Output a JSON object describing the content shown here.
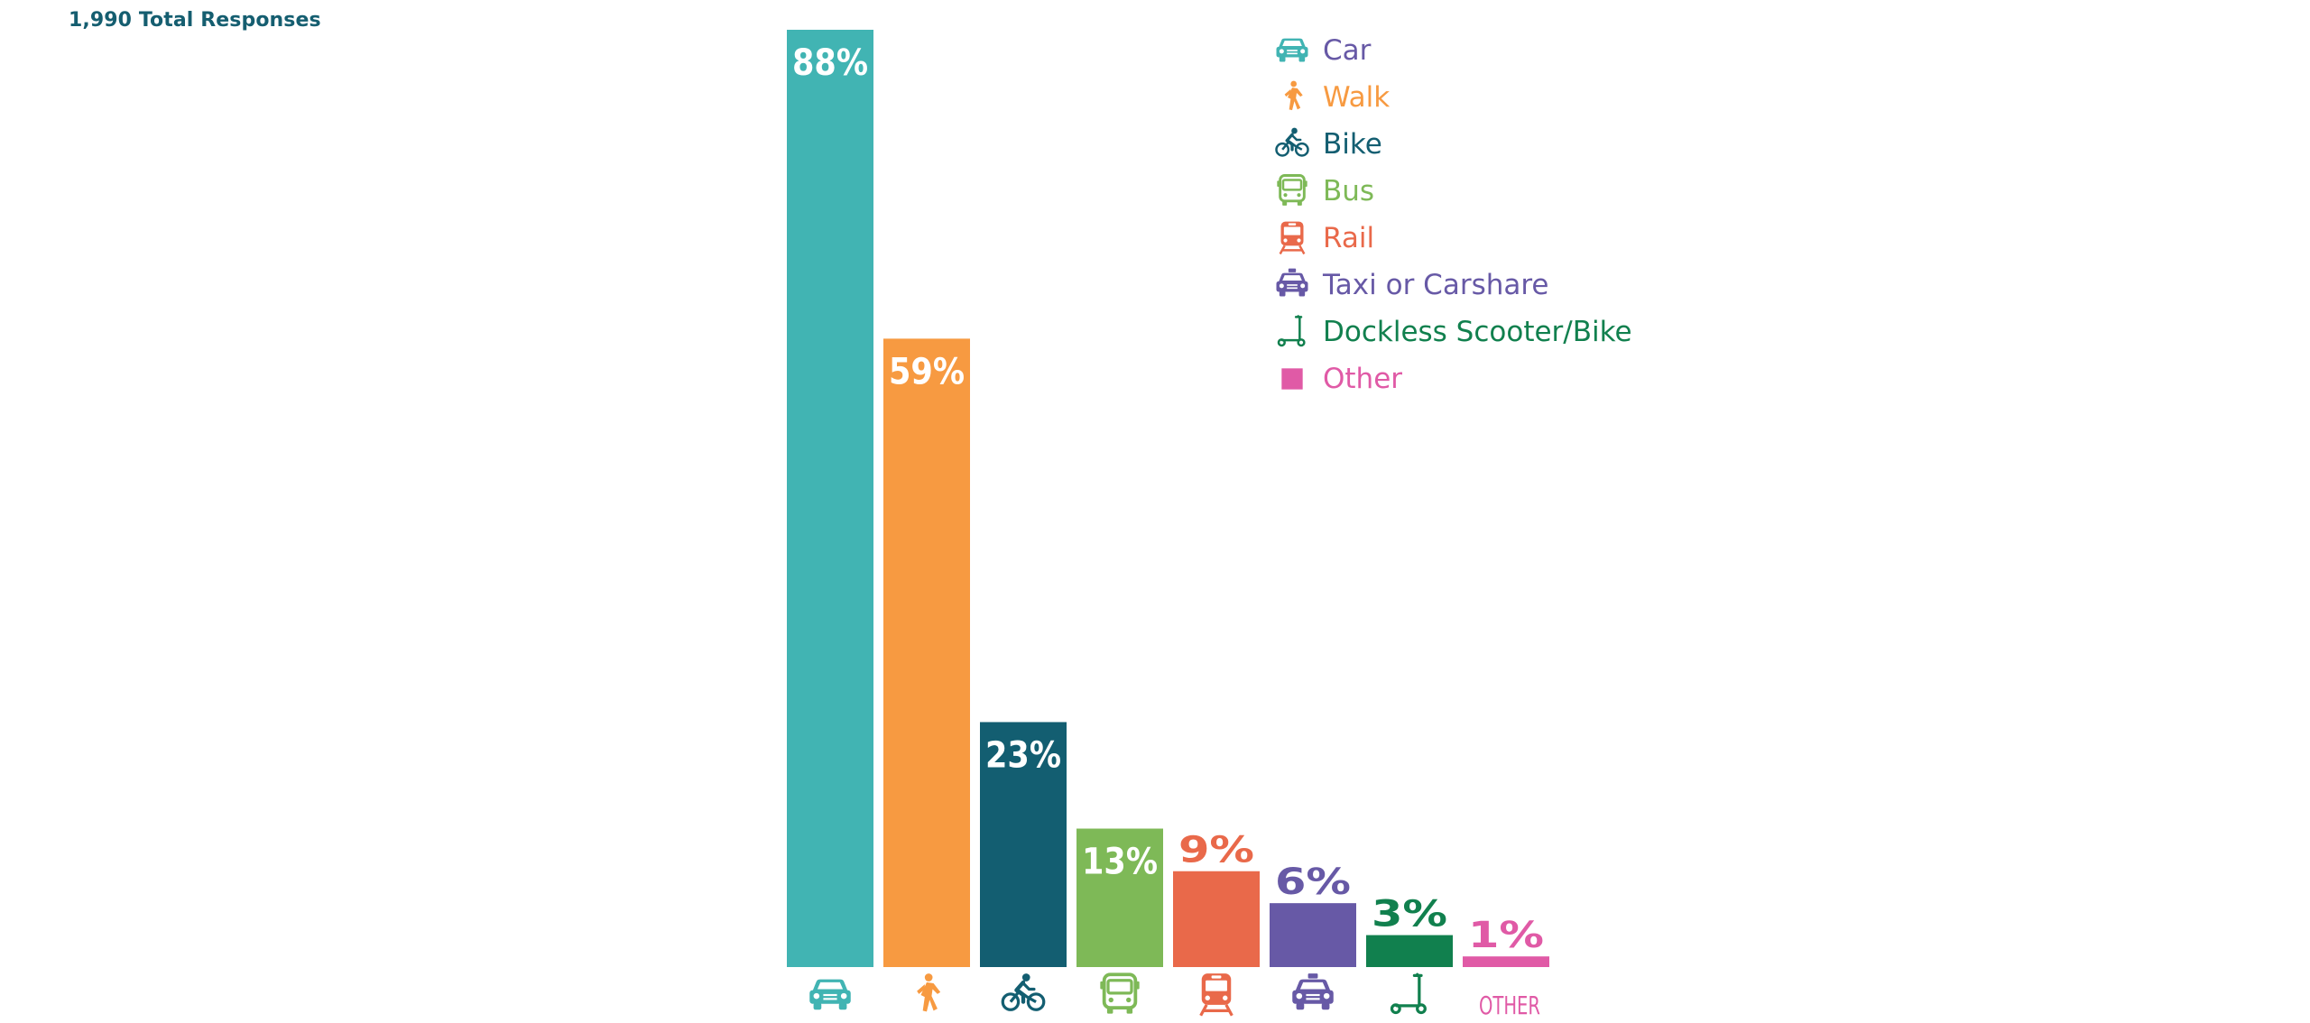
{
  "header": {
    "subtitle": "1,990 Total Responses"
  },
  "colors": {
    "car": "#41b4b3",
    "walk": "#f79a41",
    "bike": "#135e71",
    "bus": "#7eb957",
    "rail": "#e9694a",
    "taxi": "#6759a6",
    "scooter": "#11804e",
    "other": "#e05aa6",
    "legend_car_label": "#6759a6"
  },
  "chart_data": {
    "type": "bar",
    "categories": [
      "Car",
      "Walk",
      "Bike",
      "Bus",
      "Rail",
      "Taxi or Carshare",
      "Dockless Scooter/Bike",
      "Other"
    ],
    "values": [
      88,
      59,
      23,
      13,
      9,
      6,
      3,
      1
    ],
    "value_labels": [
      "88%",
      "59%",
      "23%",
      "13%",
      "9%",
      "6%",
      "3%",
      "1%"
    ],
    "unit": "%",
    "ylim": [
      0,
      88
    ],
    "axis_icons": [
      "car-icon",
      "walk-icon",
      "bike-icon",
      "bus-icon",
      "rail-icon",
      "taxi-icon",
      "scooter-icon",
      "other-text"
    ],
    "other_axis_text": "OTHER",
    "grid": false,
    "legend_position": "top-right"
  },
  "legend": {
    "items": [
      {
        "label": "Car",
        "icon": "car-icon",
        "color": "#6759a6",
        "icon_color": "#41b4b3"
      },
      {
        "label": "Walk",
        "icon": "walk-icon",
        "color": "#f79a41",
        "icon_color": "#f79a41"
      },
      {
        "label": "Bike",
        "icon": "bike-icon",
        "color": "#135e71",
        "icon_color": "#135e71"
      },
      {
        "label": "Bus",
        "icon": "bus-icon",
        "color": "#7eb957",
        "icon_color": "#7eb957"
      },
      {
        "label": "Rail",
        "icon": "rail-icon",
        "color": "#e9694a",
        "icon_color": "#e9694a"
      },
      {
        "label": "Taxi or Carshare",
        "icon": "taxi-icon",
        "color": "#6759a6",
        "icon_color": "#6759a6"
      },
      {
        "label": "Dockless Scooter/Bike",
        "icon": "scooter-icon",
        "color": "#11804e",
        "icon_color": "#11804e"
      },
      {
        "label": "Other",
        "icon": "square-icon",
        "color": "#e05aa6",
        "icon_color": "#e05aa6"
      }
    ]
  }
}
